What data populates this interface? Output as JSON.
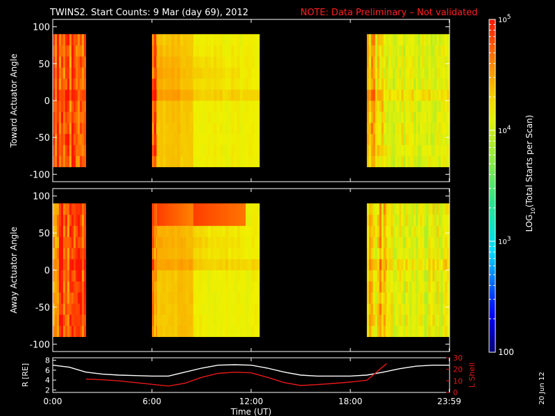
{
  "header": {
    "title": "TWINS2. Start Counts:  9 Mar (day  69), 2012",
    "note": "NOTE: Data Preliminary – Not validated"
  },
  "footer": {
    "date_stamp": "20 Jun 12"
  },
  "colors": {
    "note": "#ff2020",
    "lshell": "#e81818",
    "radius": "#ffffff",
    "frame": "#ffffff"
  },
  "colorbar": {
    "label": "LOG10(Total Starts per Scan)",
    "min": 100,
    "max": 100000,
    "scale": "log",
    "tick_labels": [
      "10^5",
      "10^4",
      "10^3",
      "100"
    ]
  },
  "chart_data": [
    {
      "type": "heatmap",
      "name": "toward",
      "ylabel": "Toward Actuator Angle",
      "ylim": [
        -110,
        110
      ],
      "yticks": [
        100,
        50,
        0,
        -50,
        -100
      ],
      "xlim": [
        0,
        24
      ],
      "data_angle_range": [
        -90,
        90
      ],
      "coverage_hours": [
        [
          0,
          2.0
        ],
        [
          6.0,
          12.5
        ],
        [
          19.0,
          24
        ]
      ],
      "blocks": [
        {
          "t0": 0.0,
          "t1": 2.0,
          "level": 4.75,
          "variability": "high"
        },
        {
          "t0": 6.0,
          "t1": 6.3,
          "level": 4.6,
          "variability": "high"
        },
        {
          "t0": 6.3,
          "t1": 8.5,
          "level": 4.35,
          "variability": "low"
        },
        {
          "t0": 8.5,
          "t1": 12.5,
          "level": 4.15,
          "variability": "low"
        },
        {
          "t0": 19.0,
          "t1": 20.2,
          "level": 4.35,
          "variability": "high"
        },
        {
          "t0": 20.2,
          "t1": 24.0,
          "level": 4.1,
          "variability": "medium"
        }
      ]
    },
    {
      "type": "heatmap",
      "name": "away",
      "ylabel": "Away Actuator Angle",
      "ylim": [
        -110,
        110
      ],
      "yticks": [
        100,
        50,
        0,
        -50,
        -100
      ],
      "xlim": [
        0,
        24
      ],
      "data_angle_range": [
        -90,
        90
      ],
      "coverage_hours": [
        [
          0,
          2.0
        ],
        [
          6.0,
          12.5
        ],
        [
          19.0,
          24
        ]
      ],
      "blocks": [
        {
          "t0": 0.0,
          "t1": 2.0,
          "level": 4.75,
          "variability": "high"
        },
        {
          "t0": 6.0,
          "t1": 6.3,
          "level": 4.6,
          "variability": "high"
        },
        {
          "t0": 6.3,
          "t1": 8.5,
          "level": 4.35,
          "variability": "low"
        },
        {
          "t0": 8.5,
          "t1": 12.5,
          "level": 4.15,
          "variability": "low"
        },
        {
          "t0": 19.0,
          "t1": 20.2,
          "level": 4.35,
          "variability": "high"
        },
        {
          "t0": 20.2,
          "t1": 24.0,
          "level": 4.1,
          "variability": "medium"
        }
      ],
      "hot_band": {
        "t0": 6.0,
        "t1": 11.5,
        "angle": 78,
        "level": 4.85
      }
    },
    {
      "type": "line",
      "name": "orbit",
      "xlabel": "Time (UT)",
      "x_tick_labels": [
        "0:00",
        "6:00",
        "12:00",
        "18:00",
        "23:59"
      ],
      "x_tick_hours": [
        0,
        6,
        12,
        18,
        23.98
      ],
      "ylabel_left": "R [RE]",
      "ylim_left": [
        1.5,
        8.5
      ],
      "yticks_left": [
        8,
        6,
        4,
        2
      ],
      "ylabel_right": "L Shell",
      "ylim_right": [
        0,
        30
      ],
      "yticks_right": [
        30,
        20,
        10,
        0
      ],
      "series": [
        {
          "name": "R [RE]",
          "axis": "left",
          "x": [
            0,
            1,
            2,
            3,
            4,
            5,
            6,
            7,
            8,
            9,
            10,
            11,
            12,
            13,
            14,
            15,
            16,
            17,
            18,
            19,
            20,
            21,
            22,
            23,
            24
          ],
          "y": [
            7.0,
            6.6,
            5.6,
            5.2,
            5.0,
            4.9,
            4.8,
            4.8,
            5.6,
            6.4,
            7.0,
            7.1,
            7.0,
            6.4,
            5.6,
            5.0,
            4.8,
            4.8,
            4.8,
            5.0,
            5.6,
            6.3,
            6.8,
            7.0,
            7.0
          ]
        },
        {
          "name": "L Shell",
          "axis": "right",
          "x": [
            2.0,
            3,
            4,
            5,
            6,
            7,
            8,
            9,
            10,
            11,
            12,
            13,
            14,
            15,
            16,
            17,
            18,
            19,
            20.2
          ],
          "y": [
            11.5,
            11.0,
            10.0,
            8.5,
            7.0,
            5.5,
            8.0,
            13.0,
            16.5,
            17.5,
            17.0,
            13.0,
            8.5,
            6.0,
            6.8,
            7.8,
            9.0,
            10.5,
            25.0
          ]
        }
      ]
    }
  ]
}
